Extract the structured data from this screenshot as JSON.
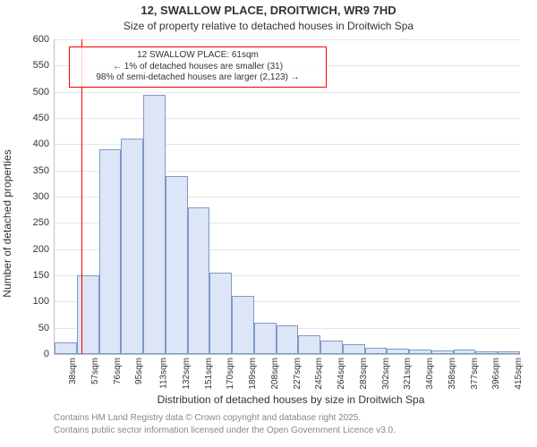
{
  "title_line1": "12, SWALLOW PLACE, DROITWICH, WR9 7HD",
  "title_line2": "Size of property relative to detached houses in Droitwich Spa",
  "ylabel": "Number of detached properties",
  "xlabel": "Distribution of detached houses by size in Droitwich Spa",
  "footer1": "Contains HM Land Registry data © Crown copyright and database right 2025.",
  "footer2": "Contains public sector information licensed under the Open Government Licence v3.0.",
  "callout": {
    "line1": "12 SWALLOW PLACE: 61sqm",
    "line2": "← 1% of detached houses are smaller (31)",
    "line3": "98% of semi-detached houses are larger (2,123) →"
  },
  "marker_x": 61,
  "histogram": {
    "type": "histogram",
    "bar_fill": "#dce6f6",
    "bar_border": "#7f99c5",
    "background": "#ffffff",
    "grid_color": "#e6e6e6",
    "marker_line_color": "#ff0000",
    "callout_border": "#ff0000",
    "callout_bg": "rgba(255,255,255,0.78)",
    "text_color": "#333333",
    "label_fontsize": 12,
    "title_fontsize": 13,
    "tick_fontsize": 11,
    "xtick_fontsize": 10,
    "ylim": [
      0,
      600
    ],
    "ytick_step": 50,
    "x_bin_start": 38,
    "x_bin_width": 19,
    "x_bin_count": 21,
    "x_tick_labels": [
      "38sqm",
      "57sqm",
      "76sqm",
      "95sqm",
      "113sqm",
      "132sqm",
      "151sqm",
      "170sqm",
      "189sqm",
      "208sqm",
      "227sqm",
      "245sqm",
      "264sqm",
      "283sqm",
      "302sqm",
      "321sqm",
      "340sqm",
      "358sqm",
      "377sqm",
      "396sqm",
      "415sqm"
    ],
    "values": [
      22,
      150,
      390,
      410,
      495,
      340,
      280,
      155,
      110,
      60,
      55,
      35,
      25,
      18,
      12,
      10,
      8,
      6,
      8,
      5,
      5
    ]
  }
}
